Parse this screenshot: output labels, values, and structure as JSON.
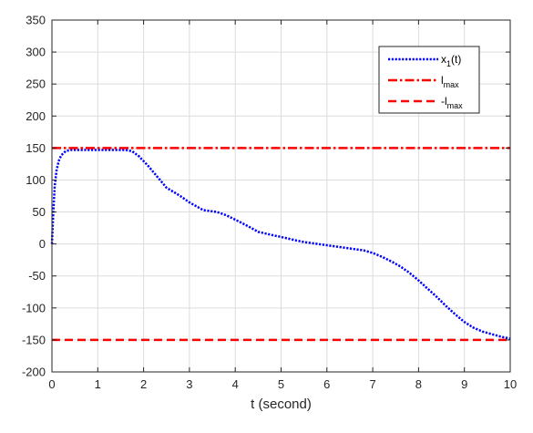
{
  "chart_data": {
    "type": "line",
    "xlabel": "t (second)",
    "ylabel": "",
    "title": "",
    "xlim": [
      0,
      10
    ],
    "ylim": [
      -200,
      350
    ],
    "x_ticks": [
      0,
      1,
      2,
      3,
      4,
      5,
      6,
      7,
      8,
      9,
      10
    ],
    "y_ticks": [
      -200,
      -150,
      -100,
      -50,
      0,
      50,
      100,
      150,
      200,
      250,
      300,
      350
    ],
    "grid": true,
    "legend_position": "top-right",
    "series": [
      {
        "name": "x1(t)",
        "name_main": "x",
        "name_sub": "1",
        "name_tail": "(t)",
        "color": "#0000ff",
        "style": "dotted",
        "x": [
          0,
          0.03,
          0.06,
          0.1,
          0.15,
          0.2,
          0.25,
          0.3,
          0.4,
          0.5,
          0.7,
          1.0,
          1.3,
          1.6,
          1.75,
          1.9,
          2.1,
          2.3,
          2.5,
          2.8,
          3.0,
          3.3,
          3.6,
          3.8,
          4.0,
          4.3,
          4.5,
          4.8,
          5.0,
          5.3,
          5.5,
          5.8,
          6.0,
          6.3,
          6.5,
          6.8,
          7.0,
          7.2,
          7.4,
          7.6,
          7.8,
          8.0,
          8.2,
          8.4,
          8.6,
          8.8,
          9.0,
          9.2,
          9.4,
          9.6,
          9.8,
          10.0
        ],
        "y": [
          0,
          50,
          90,
          115,
          130,
          138,
          142,
          145,
          147,
          147,
          147,
          147,
          147,
          147,
          145,
          137,
          122,
          105,
          88,
          75,
          65,
          53,
          50,
          45,
          38,
          27,
          19,
          14,
          11,
          6,
          3,
          0,
          -2,
          -5,
          -7,
          -10,
          -14,
          -20,
          -27,
          -35,
          -45,
          -57,
          -70,
          -83,
          -97,
          -110,
          -122,
          -131,
          -137,
          -141,
          -145,
          -148
        ]
      },
      {
        "name": "l_max",
        "name_main": "l",
        "name_sub": "max",
        "name_tail": "",
        "color": "#ff0000",
        "style": "dashdot",
        "x": [
          0,
          10
        ],
        "y": [
          150,
          150
        ]
      },
      {
        "name": "-l_max",
        "name_main": "-l",
        "name_sub": "max",
        "name_tail": "",
        "color": "#ff0000",
        "style": "dashed",
        "x": [
          0,
          10
        ],
        "y": [
          -150,
          -150
        ]
      }
    ]
  }
}
